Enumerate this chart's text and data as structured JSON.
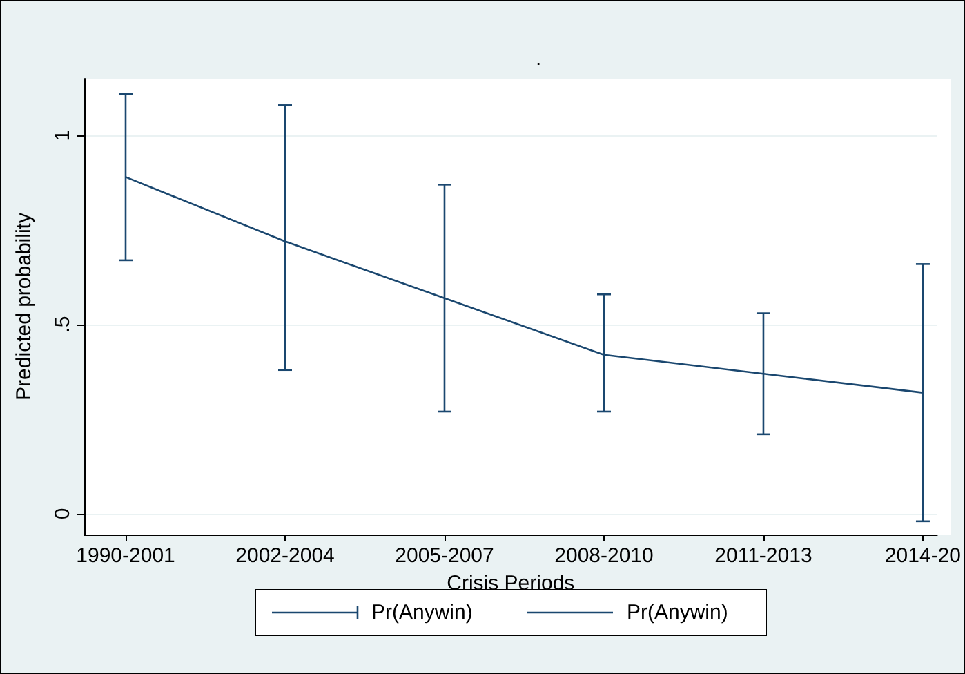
{
  "chart_data": {
    "type": "line",
    "title": ".",
    "xlabel": "Crisis Periods",
    "ylabel": "Predicted probability",
    "categories": [
      "1990-2001",
      "2002-2004",
      "2005-2007",
      "2008-2010",
      "2011-2013",
      "2014-20"
    ],
    "ylim": [
      -0.055,
      1.15
    ],
    "yticks": [
      0,
      {
        "value": 0.5,
        "label": ".5"
      },
      1
    ],
    "grid": "y",
    "legend": "bottom",
    "marker": "none",
    "line_style": "solid",
    "series": [
      {
        "name": "Pr(Anywin)",
        "color": "#1a476f",
        "values": [
          0.89,
          0.72,
          0.57,
          0.42,
          0.37,
          0.32
        ],
        "errors": [
          [
            0.67,
            1.11
          ],
          [
            0.38,
            1.08
          ],
          [
            0.27,
            0.87
          ],
          [
            0.27,
            0.58
          ],
          [
            0.21,
            0.53
          ],
          [
            -0.02,
            0.66
          ]
        ]
      }
    ]
  }
}
